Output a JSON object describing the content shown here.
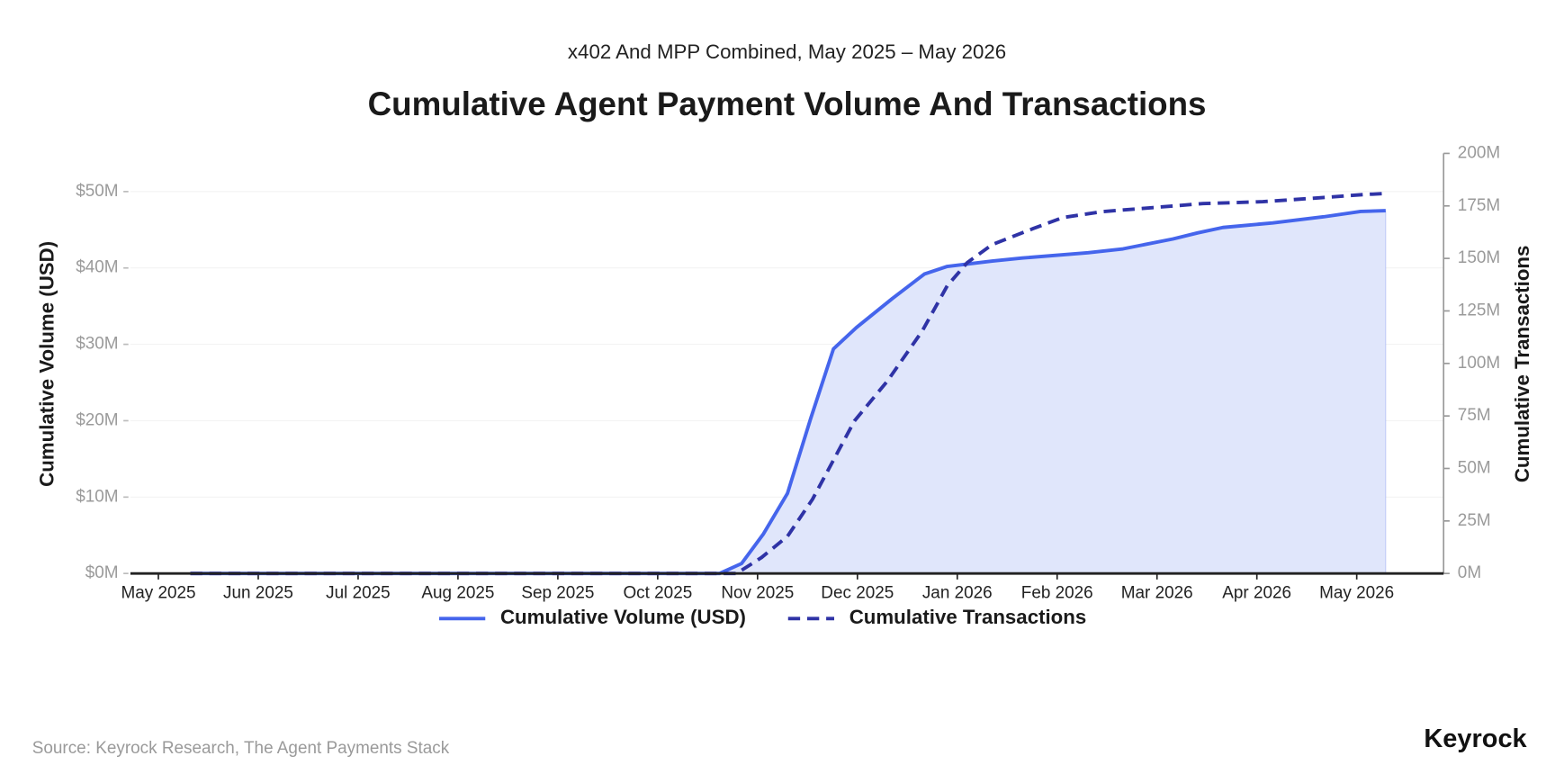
{
  "chart_data": {
    "type": "line",
    "subtitle": "x402 And MPP Combined, May 2025 – May 2026",
    "title": "Cumulative Agent Payment Volume And Transactions",
    "y_label": "Cumulative Volume (USD)",
    "y2_label": "Cumulative Transactions",
    "source": "Source: Keyrock Research, The Agent Payments Stack",
    "brand": "Keyrock",
    "xlim": [
      -0.28,
      12.87
    ],
    "xticks": [
      {
        "value": 0,
        "label": "May 2025"
      },
      {
        "value": 1,
        "label": "Jun 2025"
      },
      {
        "value": 2,
        "label": "Jul 2025"
      },
      {
        "value": 3,
        "label": "Aug 2025"
      },
      {
        "value": 4,
        "label": "Sep 2025"
      },
      {
        "value": 5,
        "label": "Oct 2025"
      },
      {
        "value": 6,
        "label": "Nov 2025"
      },
      {
        "value": 7,
        "label": "Dec 2025"
      },
      {
        "value": 8,
        "label": "Jan 2026"
      },
      {
        "value": 9,
        "label": "Feb 2026"
      },
      {
        "value": 10,
        "label": "Mar 2026"
      },
      {
        "value": 11,
        "label": "Apr 2026"
      },
      {
        "value": 12,
        "label": "May 2026"
      }
    ],
    "ylim": [
      0,
      55
    ],
    "yticks": [
      {
        "value": 0,
        "label": "$0M"
      },
      {
        "value": 10,
        "label": "$10M"
      },
      {
        "value": 20,
        "label": "$20M"
      },
      {
        "value": 30,
        "label": "$30M"
      },
      {
        "value": 40,
        "label": "$40M"
      },
      {
        "value": 50,
        "label": "$50M"
      }
    ],
    "y2lim": [
      0,
      200
    ],
    "y2ticks": [
      {
        "value": 0,
        "label": "0M"
      },
      {
        "value": 25,
        "label": "25M"
      },
      {
        "value": 50,
        "label": "50M"
      },
      {
        "value": 75,
        "label": "75M"
      },
      {
        "value": 100,
        "label": "100M"
      },
      {
        "value": 125,
        "label": "125M"
      },
      {
        "value": 150,
        "label": "150M"
      },
      {
        "value": 175,
        "label": "175M"
      },
      {
        "value": 200,
        "label": "200M"
      }
    ],
    "grid": true,
    "series": [
      {
        "name": "Cumulative Volume (USD)",
        "color": "#4565ec",
        "style": "solid",
        "fill": "#e0e6fb",
        "x": [
          0.32,
          5.62,
          5.84,
          6.06,
          6.3,
          6.53,
          6.76,
          6.99,
          7.35,
          7.67,
          7.9,
          8.35,
          8.65,
          9.31,
          9.66,
          10.16,
          10.41,
          10.66,
          11.16,
          11.67,
          12.04,
          12.29
        ],
        "values": [
          0,
          0,
          1.3,
          5.2,
          10.5,
          20.2,
          29.4,
          32.2,
          36.0,
          39.2,
          40.2,
          40.9,
          41.3,
          42.0,
          42.5,
          43.8,
          44.6,
          45.3,
          45.9,
          46.7,
          47.4,
          47.5
        ]
      },
      {
        "name": "Cumulative Transactions",
        "color": "#2f33a6",
        "style": "dashed",
        "axis": "y2",
        "x": [
          0.32,
          5.79,
          6.04,
          6.3,
          6.55,
          6.97,
          7.3,
          7.65,
          7.9,
          8.1,
          8.35,
          8.76,
          9.06,
          9.46,
          9.96,
          10.46,
          11.06,
          11.67,
          12.07,
          12.29
        ],
        "values": [
          0,
          0,
          7.6,
          17.7,
          35.3,
          72.6,
          91.6,
          115.5,
          137,
          148,
          156.6,
          164.2,
          169.5,
          172.3,
          174.2,
          176.1,
          177,
          179,
          180.4,
          180.9
        ]
      }
    ]
  }
}
